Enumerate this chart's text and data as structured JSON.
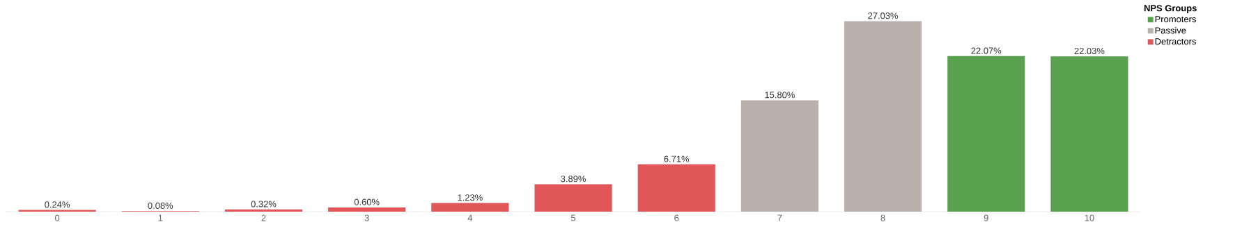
{
  "chart_data": {
    "type": "bar",
    "legend_title": "NPS Groups",
    "categories": [
      "0",
      "1",
      "2",
      "3",
      "4",
      "5",
      "6",
      "7",
      "8",
      "9",
      "10"
    ],
    "series": [
      {
        "name": "Promoters",
        "color": "#59a14f",
        "values": [
          null,
          null,
          null,
          null,
          null,
          null,
          null,
          null,
          null,
          22.07,
          22.03
        ],
        "value_labels": [
          null,
          null,
          null,
          null,
          null,
          null,
          null,
          null,
          null,
          "22.07%",
          "22.03%"
        ]
      },
      {
        "name": "Passive",
        "color": "#bab0ac",
        "values": [
          null,
          null,
          null,
          null,
          null,
          null,
          null,
          15.8,
          27.03,
          null,
          null
        ],
        "value_labels": [
          null,
          null,
          null,
          null,
          null,
          null,
          null,
          "15.80%",
          "27.03%",
          null,
          null
        ]
      },
      {
        "name": "Detractors",
        "color": "#e15759",
        "values": [
          0.24,
          0.08,
          0.32,
          0.6,
          1.23,
          3.89,
          6.71,
          null,
          null,
          null,
          null
        ],
        "value_labels": [
          "0.24%",
          "0.08%",
          "0.32%",
          "0.60%",
          "1.23%",
          "3.89%",
          "6.71%",
          null,
          null,
          null,
          null
        ]
      }
    ],
    "tick_labels": "x",
    "legend": "top right"
  }
}
